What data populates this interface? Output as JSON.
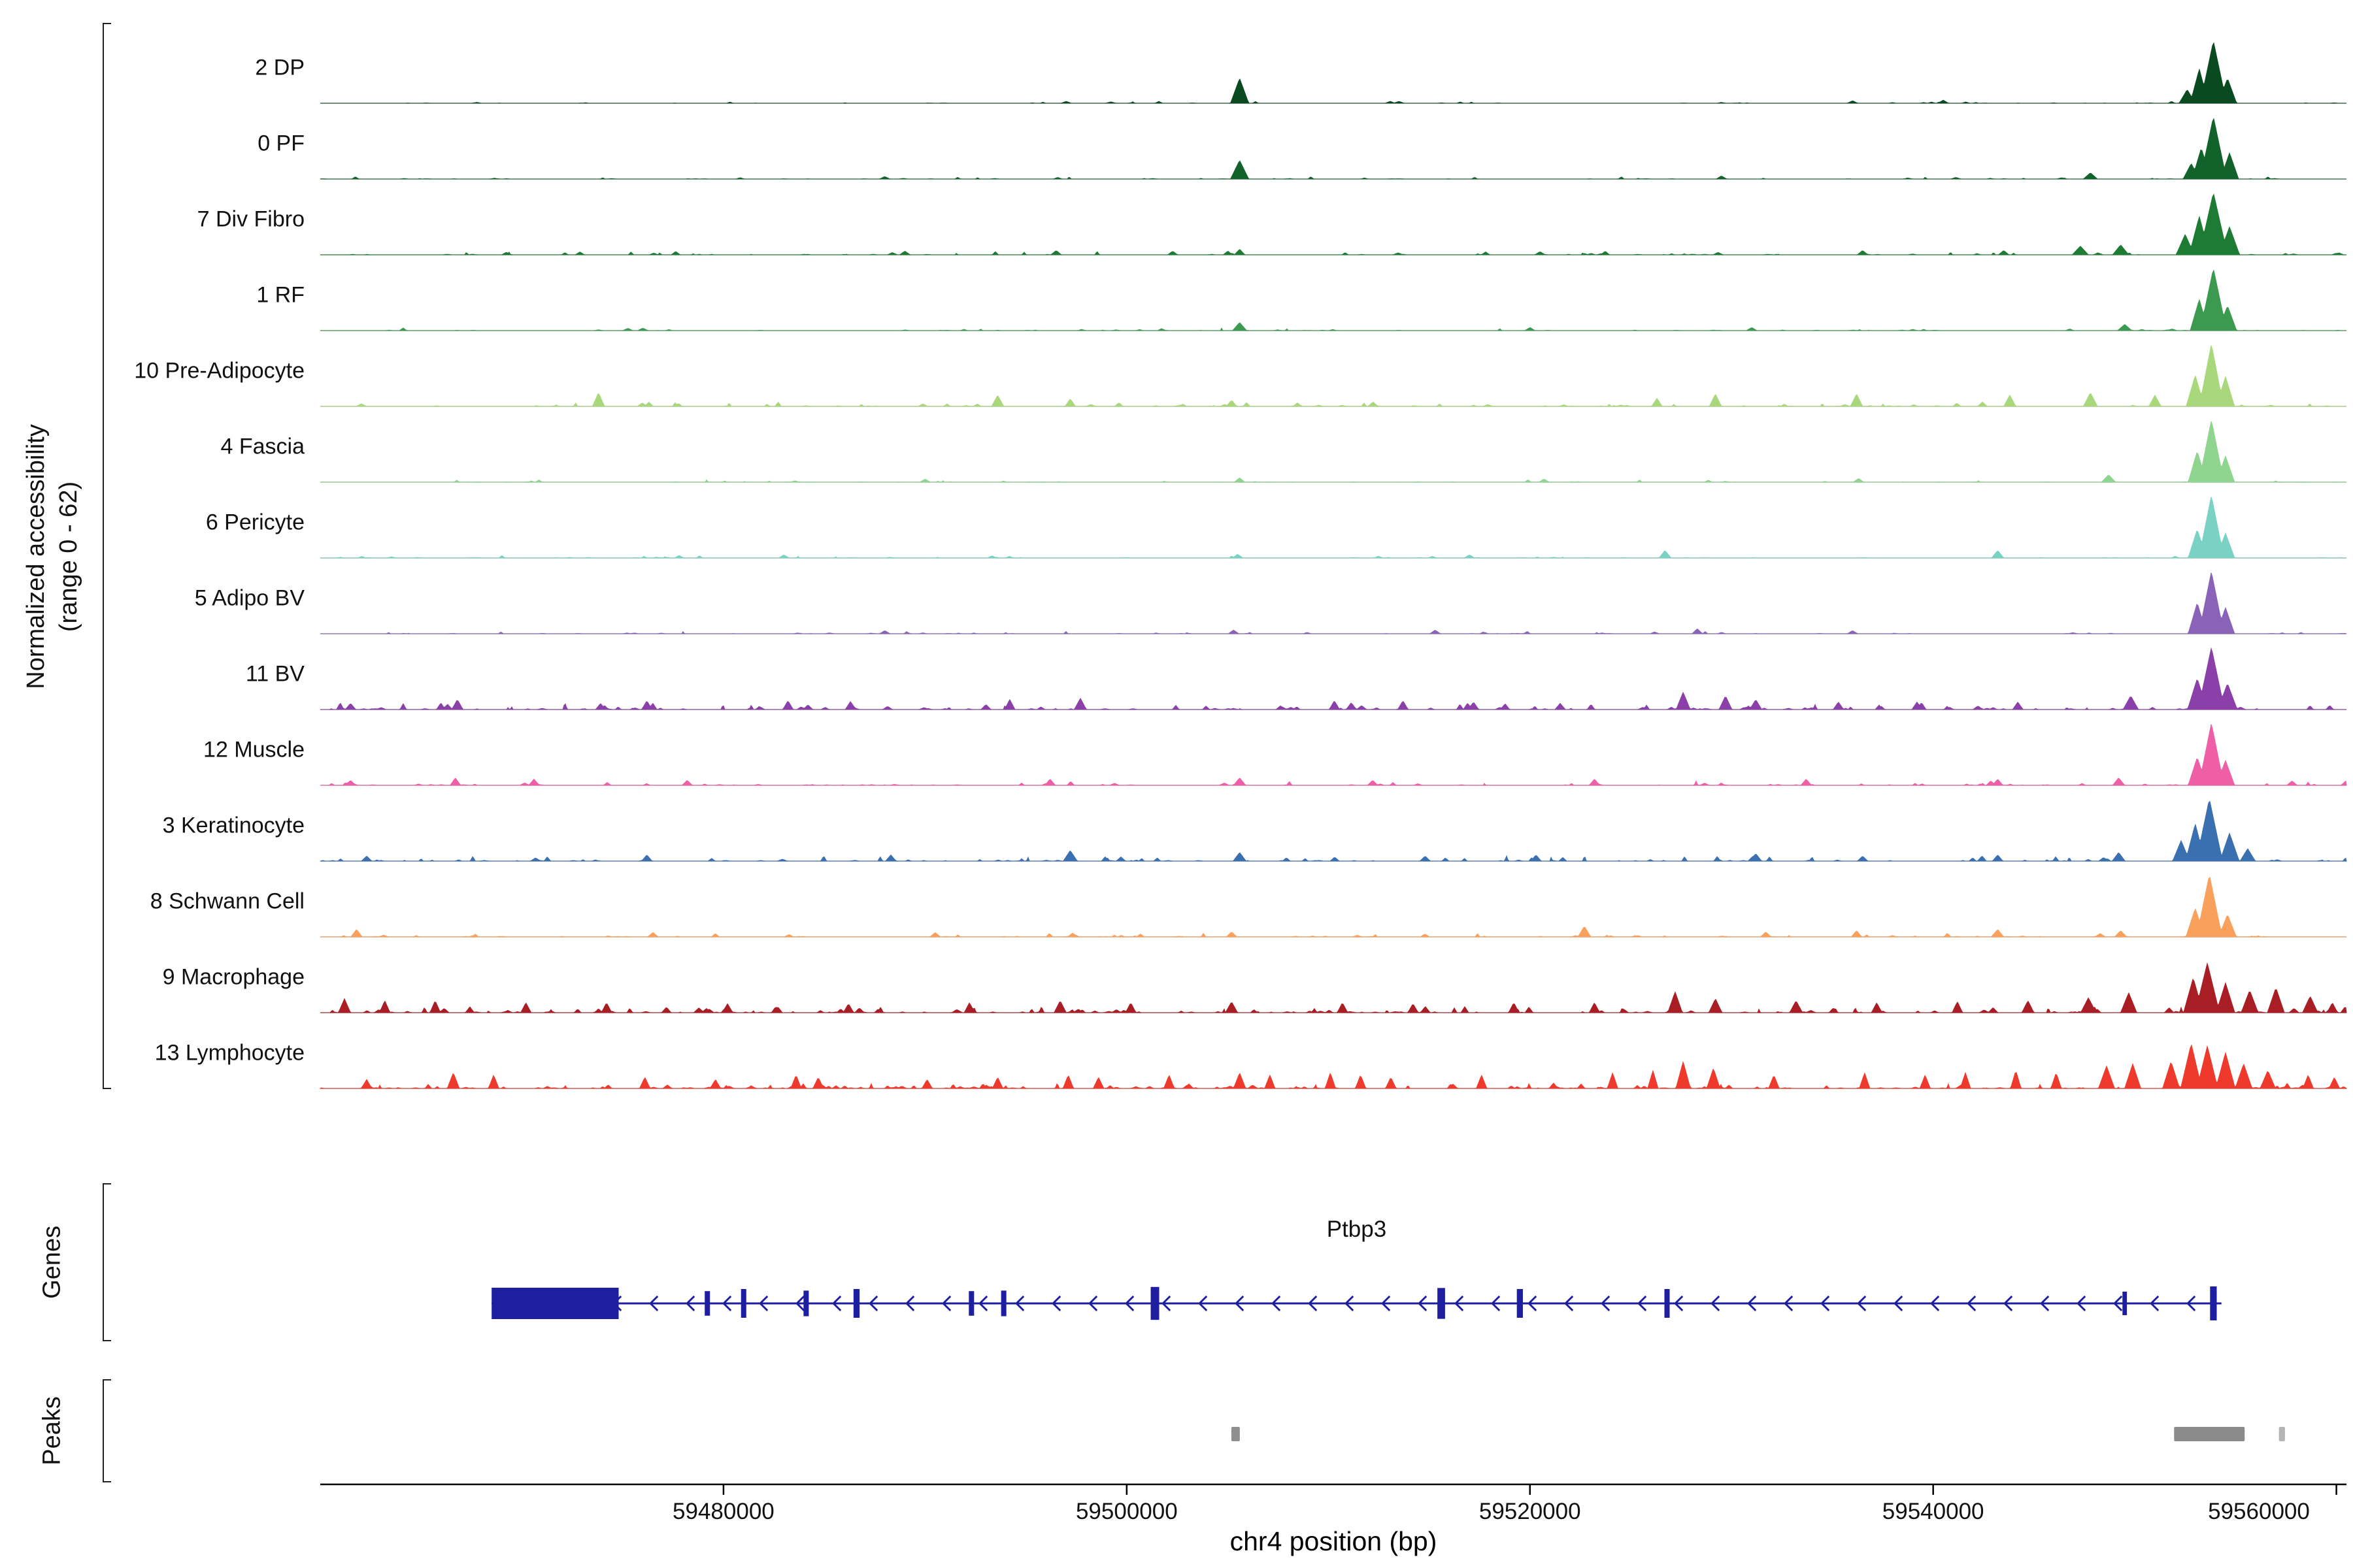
{
  "figure": {
    "y_axis_label": {
      "line1": "Normalized accessibility",
      "line2": "(range 0 - 62)"
    },
    "genes_label": "Genes",
    "peaks_label": "Peaks",
    "x_axis_title": "chr4 position (bp)"
  },
  "chart_data": {
    "type": "area",
    "title": "",
    "xlabel": "chr4 position (bp)",
    "ylabel": "Normalized accessibility (range 0 - 62)",
    "y_range": [
      0,
      62
    ],
    "x_range_bp": [
      59460000,
      59560500
    ],
    "x_ticks_bp": [
      59480000,
      59500000,
      59520000,
      59540000,
      59560000
    ],
    "x_tick_labels": [
      "59480000",
      "59500000",
      "59520000",
      "59540000",
      "59560000"
    ],
    "legend_position": "none",
    "grid": false,
    "tracks": [
      {
        "label": "2 DP",
        "color": "#0a4a21",
        "scale": 1.0,
        "noise": 0.25,
        "noise_spikes": 55,
        "spikes": [
          [
            59505600,
            0.4,
            450
          ],
          [
            59552600,
            0.22,
            400
          ],
          [
            59553200,
            0.55,
            450
          ],
          [
            59553900,
            1.0,
            650
          ],
          [
            59554600,
            0.4,
            450
          ],
          [
            59540500,
            0.05
          ],
          [
            59536000,
            0.04
          ],
          [
            59513500,
            0.03
          ],
          [
            59497000,
            0.03
          ]
        ]
      },
      {
        "label": "0 PF",
        "color": "#12632b",
        "scale": 1.0,
        "noise": 0.3,
        "noise_spikes": 65,
        "spikes": [
          [
            59505600,
            0.3,
            450
          ],
          [
            59552800,
            0.25,
            400
          ],
          [
            59553900,
            1.0,
            650
          ],
          [
            59553300,
            0.5,
            450
          ],
          [
            59554700,
            0.42,
            450
          ],
          [
            59547800,
            0.1,
            350
          ],
          [
            59529500,
            0.05
          ],
          [
            59488000,
            0.04
          ]
        ]
      },
      {
        "label": "7 Div Fibro",
        "color": "#1e7b33",
        "scale": 1.0,
        "noise": 0.5,
        "noise_spikes": 85,
        "spikes": [
          [
            59553900,
            1.0,
            700
          ],
          [
            59553200,
            0.62,
            500
          ],
          [
            59552500,
            0.33,
            450
          ],
          [
            59554700,
            0.45,
            500
          ],
          [
            59549300,
            0.16,
            400
          ],
          [
            59547300,
            0.14,
            400
          ],
          [
            59505600,
            0.09
          ],
          [
            59496500,
            0.07
          ],
          [
            59489000,
            0.06
          ],
          [
            59536500,
            0.07
          ],
          [
            59543500,
            0.07
          ],
          [
            59520500,
            0.05
          ]
        ]
      },
      {
        "label": "1 RF",
        "color": "#3c9a50",
        "scale": 1.0,
        "noise": 0.35,
        "noise_spikes": 65,
        "spikes": [
          [
            59553900,
            1.0,
            650
          ],
          [
            59553200,
            0.5,
            450
          ],
          [
            59554600,
            0.4,
            450
          ],
          [
            59505600,
            0.13,
            350
          ],
          [
            59549500,
            0.1,
            350
          ],
          [
            59531000,
            0.05
          ],
          [
            59520000,
            0.05
          ],
          [
            59476000,
            0.04
          ]
        ]
      },
      {
        "label": "10 Pre-Adipocyte",
        "color": "#a9d87c",
        "scale": 1.0,
        "noise": 0.6,
        "noise_spikes": 90,
        "spikes": [
          [
            59553800,
            1.0,
            600
          ],
          [
            59553000,
            0.5,
            450
          ],
          [
            59554500,
            0.48,
            450
          ],
          [
            59473800,
            0.22,
            300
          ],
          [
            59493600,
            0.18,
            300
          ],
          [
            59497200,
            0.12
          ],
          [
            59505200,
            0.1
          ],
          [
            59526300,
            0.13
          ],
          [
            59529200,
            0.2,
            300
          ],
          [
            59536200,
            0.2,
            300
          ],
          [
            59543800,
            0.18,
            300
          ],
          [
            59547800,
            0.22,
            350
          ],
          [
            59551000,
            0.18,
            300
          ]
        ]
      },
      {
        "label": "4 Fascia",
        "color": "#8fd48f",
        "scale": 1.0,
        "noise": 0.35,
        "noise_spikes": 60,
        "spikes": [
          [
            59553800,
            1.0,
            620
          ],
          [
            59553100,
            0.5,
            450
          ],
          [
            59554500,
            0.42,
            450
          ],
          [
            59548700,
            0.12,
            350
          ],
          [
            59505600,
            0.07
          ],
          [
            59520700,
            0.05
          ],
          [
            59536300,
            0.06
          ],
          [
            59490000,
            0.05
          ]
        ]
      },
      {
        "label": "6 Pericyte",
        "color": "#79d2c3",
        "scale": 1.0,
        "noise": 0.35,
        "noise_spikes": 60,
        "spikes": [
          [
            59553800,
            1.0,
            620
          ],
          [
            59553100,
            0.46,
            450
          ],
          [
            59554500,
            0.4,
            450
          ],
          [
            59543200,
            0.12,
            300
          ],
          [
            59526700,
            0.12,
            300
          ],
          [
            59505500,
            0.06
          ],
          [
            59483000,
            0.05
          ],
          [
            59517000,
            0.05
          ]
        ]
      },
      {
        "label": "5 Adipo BV",
        "color": "#8a63b8",
        "scale": 1.0,
        "noise": 0.35,
        "noise_spikes": 70,
        "spikes": [
          [
            59553800,
            1.0,
            620
          ],
          [
            59553100,
            0.5,
            450
          ],
          [
            59554500,
            0.42,
            450
          ],
          [
            59528300,
            0.08
          ],
          [
            59515300,
            0.06
          ],
          [
            59505300,
            0.06
          ],
          [
            59488000,
            0.05
          ],
          [
            59536000,
            0.05
          ]
        ]
      },
      {
        "label": "11 BV",
        "color": "#8b3fa8",
        "scale": 1.0,
        "noise": 0.9,
        "noise_spikes": 150,
        "spikes": [
          [
            59553800,
            1.0,
            650
          ],
          [
            59553100,
            0.5,
            480
          ],
          [
            59554600,
            0.42,
            480
          ],
          [
            59549800,
            0.22,
            380
          ],
          [
            59527600,
            0.28,
            350
          ],
          [
            59529700,
            0.22,
            320
          ],
          [
            59466800,
            0.16,
            280
          ],
          [
            59476200,
            0.14
          ],
          [
            59483200,
            0.14
          ],
          [
            59486300,
            0.13
          ],
          [
            59494200,
            0.16
          ],
          [
            59497700,
            0.18,
            300
          ],
          [
            59510300,
            0.14
          ],
          [
            59513700,
            0.14
          ],
          [
            59517200,
            0.12
          ],
          [
            59531200,
            0.16,
            300
          ],
          [
            59535300,
            0.12
          ],
          [
            59539200,
            0.12
          ],
          [
            59544200,
            0.12
          ],
          [
            59521500,
            0.1
          ],
          [
            59461500,
            0.1
          ]
        ]
      },
      {
        "label": "12 Muscle",
        "color": "#ef5fa7",
        "scale": 1.0,
        "noise": 0.6,
        "noise_spikes": 95,
        "spikes": [
          [
            59553800,
            1.0,
            620
          ],
          [
            59553100,
            0.45,
            450
          ],
          [
            59554500,
            0.4,
            450
          ],
          [
            59466700,
            0.12
          ],
          [
            59470600,
            0.1
          ],
          [
            59478200,
            0.08
          ],
          [
            59496200,
            0.1
          ],
          [
            59505600,
            0.12,
            300
          ],
          [
            59512200,
            0.08
          ],
          [
            59523200,
            0.1
          ],
          [
            59533700,
            0.1
          ],
          [
            59543200,
            0.1
          ],
          [
            59549200,
            0.12,
            300
          ],
          [
            59557800,
            0.07
          ],
          [
            59461500,
            0.08
          ]
        ]
      },
      {
        "label": "3 Keratinocyte",
        "color": "#3a6fb0",
        "scale": 1.0,
        "noise": 0.7,
        "noise_spikes": 115,
        "spikes": [
          [
            59553700,
            1.0,
            650
          ],
          [
            59553000,
            0.6,
            480
          ],
          [
            59552300,
            0.33,
            420
          ],
          [
            59554700,
            0.45,
            480
          ],
          [
            59555600,
            0.2,
            380
          ],
          [
            59497200,
            0.17,
            350
          ],
          [
            59505600,
            0.14,
            320
          ],
          [
            59520300,
            0.1
          ],
          [
            59531200,
            0.12,
            300
          ],
          [
            59543200,
            0.1
          ],
          [
            59549200,
            0.14,
            320
          ],
          [
            59462300,
            0.08
          ],
          [
            59476200,
            0.1
          ],
          [
            59488300,
            0.1
          ],
          [
            59514800,
            0.08
          ],
          [
            59536500,
            0.08
          ]
        ]
      },
      {
        "label": "8 Schwann Cell",
        "color": "#f9a05c",
        "scale": 1.0,
        "noise": 0.5,
        "noise_spikes": 85,
        "spikes": [
          [
            59553700,
            1.0,
            630
          ],
          [
            59553000,
            0.46,
            460
          ],
          [
            59554600,
            0.36,
            440
          ],
          [
            59522700,
            0.17,
            320
          ],
          [
            59536200,
            0.1
          ],
          [
            59543200,
            0.12,
            300
          ],
          [
            59549300,
            0.1,
            300
          ],
          [
            59461800,
            0.12,
            280
          ],
          [
            59505200,
            0.08
          ],
          [
            59531700,
            0.08
          ],
          [
            59476500,
            0.07
          ],
          [
            59490500,
            0.07
          ]
        ]
      },
      {
        "label": "9 Macrophage",
        "color": "#a81e24",
        "scale": 0.8,
        "noise": 1.0,
        "noise_spikes": 190,
        "spikes": [
          [
            59553600,
            1.0,
            600
          ],
          [
            59552900,
            0.7,
            480
          ],
          [
            59554500,
            0.6,
            460
          ],
          [
            59555700,
            0.45,
            420
          ],
          [
            59557000,
            0.5,
            420
          ],
          [
            59558700,
            0.33,
            380
          ],
          [
            59547700,
            0.3,
            380
          ],
          [
            59549700,
            0.4,
            400
          ],
          [
            59527200,
            0.42,
            360
          ],
          [
            59529200,
            0.28,
            330
          ],
          [
            59533200,
            0.24,
            320
          ],
          [
            59461200,
            0.28,
            300
          ],
          [
            59463200,
            0.24
          ],
          [
            59465700,
            0.24
          ],
          [
            59470200,
            0.2
          ],
          [
            59474200,
            0.2
          ],
          [
            59480200,
            0.18
          ],
          [
            59486200,
            0.18
          ],
          [
            59492200,
            0.2
          ],
          [
            59496700,
            0.24,
            300
          ],
          [
            59500200,
            0.2
          ],
          [
            59505200,
            0.22,
            300
          ],
          [
            59510700,
            0.2
          ],
          [
            59514200,
            0.18
          ],
          [
            59519200,
            0.2
          ],
          [
            59523200,
            0.2
          ],
          [
            59537200,
            0.2
          ],
          [
            59541200,
            0.22
          ],
          [
            59544700,
            0.24,
            300
          ],
          [
            59559800,
            0.2
          ]
        ]
      },
      {
        "label": "13 Lymphocyte",
        "color": "#ee3a2c",
        "scale": 0.72,
        "noise": 1.0,
        "noise_spikes": 210,
        "spikes": [
          [
            59552800,
            1.0,
            520
          ],
          [
            59553600,
            0.95,
            520
          ],
          [
            59554500,
            0.8,
            480
          ],
          [
            59551800,
            0.6,
            420
          ],
          [
            59555400,
            0.55,
            420
          ],
          [
            59556600,
            0.4,
            380
          ],
          [
            59548600,
            0.5,
            400
          ],
          [
            59549900,
            0.55,
            400
          ],
          [
            59527600,
            0.6,
            360
          ],
          [
            59529100,
            0.45,
            330
          ],
          [
            59466600,
            0.35,
            300
          ],
          [
            59468600,
            0.3
          ],
          [
            59483600,
            0.3
          ],
          [
            59484700,
            0.25
          ],
          [
            59497100,
            0.3
          ],
          [
            59498600,
            0.25
          ],
          [
            59502100,
            0.3
          ],
          [
            59505600,
            0.35,
            300
          ],
          [
            59507100,
            0.3
          ],
          [
            59510100,
            0.35
          ],
          [
            59511600,
            0.3
          ],
          [
            59513100,
            0.25
          ],
          [
            59517600,
            0.3
          ],
          [
            59524100,
            0.35
          ],
          [
            59526100,
            0.4
          ],
          [
            59532100,
            0.3
          ],
          [
            59536600,
            0.35
          ],
          [
            59539600,
            0.3
          ],
          [
            59541600,
            0.35
          ],
          [
            59544100,
            0.4
          ],
          [
            59546100,
            0.35
          ],
          [
            59558600,
            0.3
          ],
          [
            59559900,
            0.25
          ],
          [
            59476100,
            0.25
          ],
          [
            59479600,
            0.2
          ],
          [
            59490100,
            0.2
          ],
          [
            59493600,
            0.25
          ],
          [
            59462300,
            0.2
          ]
        ]
      }
    ],
    "gene_track": {
      "name": "Ptbp3",
      "strand": "-",
      "color": "#1e1ea0",
      "start_bp": 59468500,
      "end_bp": 59554300,
      "utr_box": [
        59468500,
        59474800
      ],
      "exons": [
        [
          59479200,
          260,
          0.55
        ],
        [
          59481000,
          260,
          0.75
        ],
        [
          59484100,
          260,
          0.6
        ],
        [
          59486600,
          300,
          0.75
        ],
        [
          59492300,
          260,
          0.55
        ],
        [
          59493900,
          260,
          0.6
        ],
        [
          59501400,
          420,
          0.95
        ],
        [
          59515600,
          380,
          0.85
        ],
        [
          59519500,
          300,
          0.75
        ],
        [
          59526800,
          260,
          0.75
        ],
        [
          59549500,
          220,
          0.5
        ],
        [
          59553900,
          330,
          1.0
        ]
      ]
    },
    "peaks_track": {
      "color": "#8a8a8a",
      "peaks": [
        [
          59505400,
          420,
          "#8f8f8f"
        ],
        [
          59553700,
          3500,
          "#8a8a8a"
        ],
        [
          59557300,
          300,
          "#b5b5b5"
        ]
      ]
    }
  }
}
